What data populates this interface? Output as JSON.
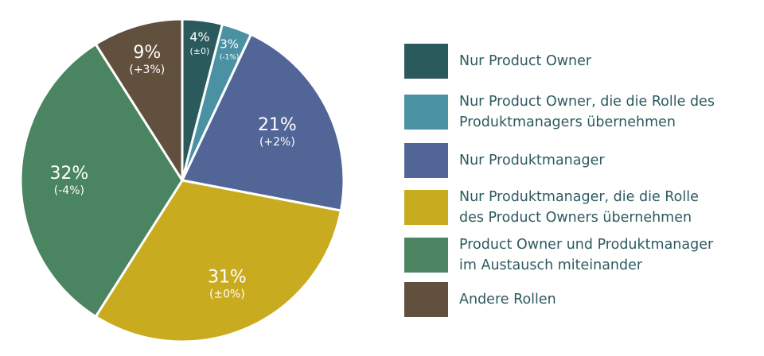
{
  "chart_data": {
    "type": "pie",
    "slices": [
      {
        "label": "Nur Product Owner",
        "value": 4,
        "pct_label": "4%",
        "change_label": "(±0)",
        "color": "#2b5a5c"
      },
      {
        "label": "Nur Product Owner, die die Rolle des Produktmanagers übernehmen",
        "value": 3,
        "pct_label": "3%",
        "change_label": "(-1%)",
        "color": "#4a91a3"
      },
      {
        "label": "Nur Produktmanager",
        "value": 21,
        "pct_label": "21%",
        "change_label": "(+2%)",
        "color": "#526597"
      },
      {
        "label": "Nur Produktmanager, die die Rolle des Product Owners übernehmen",
        "value": 31,
        "pct_label": "31%",
        "change_label": "(±0%)",
        "color": "#c9ab20"
      },
      {
        "label": "Product Owner und Produktmanager im Austausch miteinander",
        "value": 32,
        "pct_label": "32%",
        "change_label": "(-4%)",
        "color": "#4a8460"
      },
      {
        "label": "Andere Rollen",
        "value": 9,
        "pct_label": "9%",
        "change_label": "(+3%)",
        "color": "#62503f"
      }
    ]
  },
  "legend": {
    "items": [
      {
        "label_lines": [
          "Nur Product Owner"
        ],
        "color": "#2b5a5c"
      },
      {
        "label_lines": [
          "Nur Product Owner, die die Rolle des",
          "Produktmanagers übernehmen"
        ],
        "color": "#4a91a3"
      },
      {
        "label_lines": [
          "Nur Produktmanager"
        ],
        "color": "#526597"
      },
      {
        "label_lines": [
          "Nur Produktmanager, die die Rolle",
          "des Product Owners übernehmen"
        ],
        "color": "#c9ab20"
      },
      {
        "label_lines": [
          "Product Owner und Produktmanager",
          "im Austausch miteinander"
        ],
        "color": "#4a8460"
      },
      {
        "label_lines": [
          "Andere Rollen"
        ],
        "color": "#62503f"
      }
    ]
  }
}
